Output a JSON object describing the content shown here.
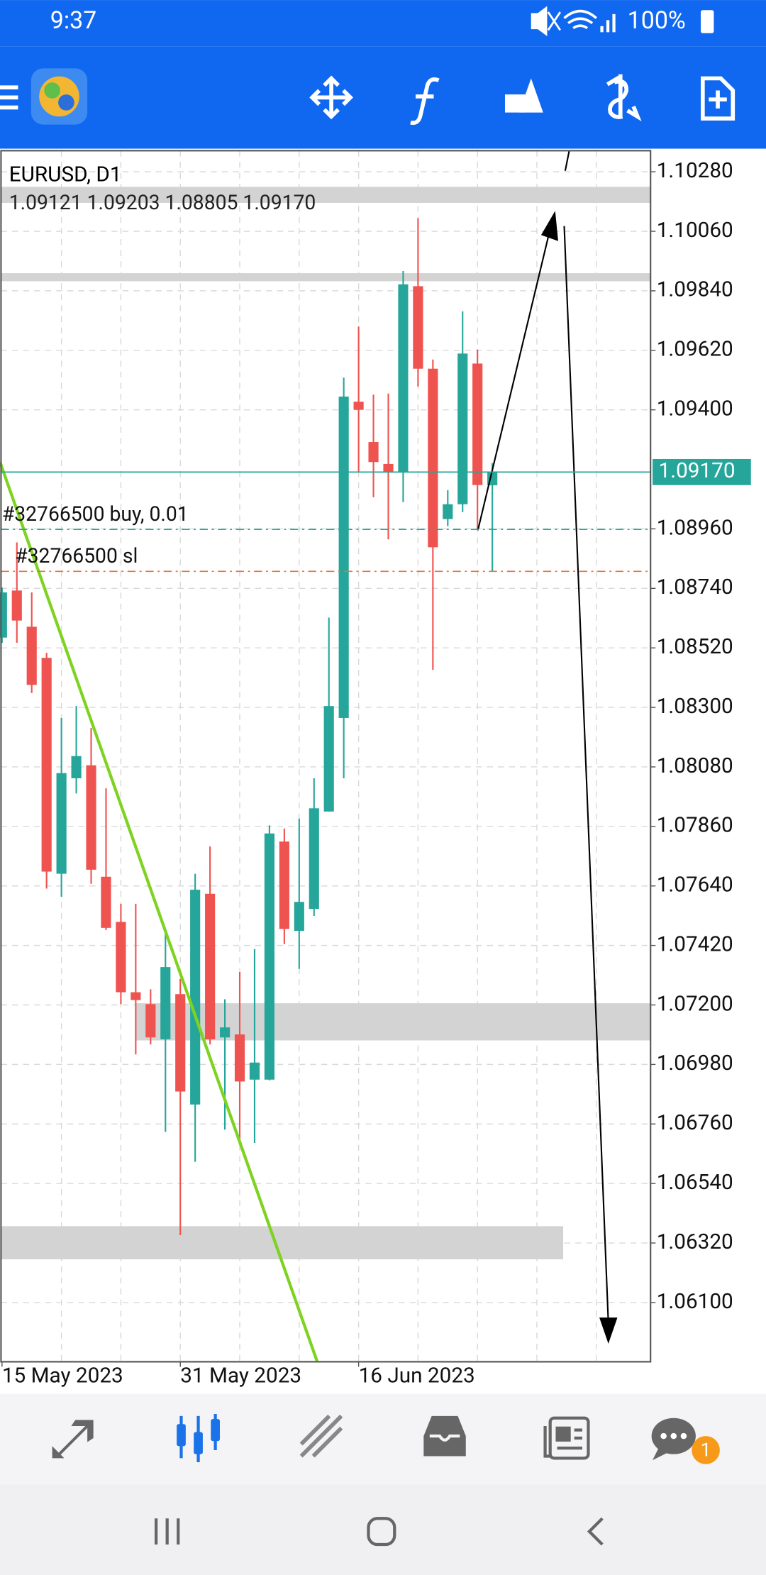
{
  "status_bar": {
    "time": "9:37",
    "battery": "100%"
  },
  "chart_data": {
    "type": "candlestick",
    "title": "EURUSD, D1",
    "subtitle": "1.09121 1.09203 1.08805 1.09170",
    "categories": [
      "15 May 2023",
      null,
      null,
      null,
      null,
      null,
      null,
      null,
      null,
      null,
      null,
      null,
      "31 May 2023",
      null,
      null,
      null,
      null,
      null,
      null,
      null,
      null,
      null,
      null,
      null,
      "16 Jun 2023",
      null,
      null,
      null,
      null,
      null,
      null,
      null,
      null,
      null
    ],
    "open": [
      1.08558,
      1.08732,
      1.08598,
      1.08483,
      1.07685,
      1.08038,
      1.08086,
      1.07674,
      1.07507,
      1.07247,
      1.07203,
      1.07073,
      1.0724,
      1.06832,
      1.07611,
      1.0708,
      1.07091,
      1.06924,
      1.06924,
      1.07804,
      1.07474,
      1.07555,
      1.07915,
      1.08261,
      1.0943,
      1.09281,
      1.092,
      1.0917,
      1.09857,
      1.09552,
      1.08996,
      1.09051,
      1.09571,
      1.09121
    ],
    "high": [
      1.08743,
      1.0891,
      1.08725,
      1.08502,
      1.08261,
      1.08305,
      1.08224,
      1.08001,
      1.07574,
      1.07574,
      1.07258,
      1.07463,
      1.07296,
      1.07685,
      1.07786,
      1.07221,
      1.07322,
      1.07407,
      1.07864,
      1.07852,
      1.07889,
      1.08038,
      1.08632,
      1.09519,
      1.09708,
      1.09456,
      1.0946,
      1.09913,
      1.10109,
      1.09586,
      1.09103,
      1.09764,
      1.09623,
      1.09203
    ],
    "low": [
      1.08539,
      1.08539,
      1.08353,
      1.0763,
      1.076,
      1.07982,
      1.07648,
      1.07477,
      1.07203,
      1.07017,
      1.07054,
      1.06731,
      1.06349,
      1.0662,
      1.07054,
      1.06739,
      1.06683,
      1.0669,
      1.06921,
      1.07425,
      1.07333,
      1.07529,
      1.07915,
      1.08038,
      1.0917,
      1.09077,
      1.08921,
      1.09059,
      1.09486,
      1.08439,
      1.0897,
      1.09022,
      1.08959,
      1.08805
    ],
    "close": [
      1.08725,
      1.08621,
      1.08383,
      1.07693,
      1.08057,
      1.0812,
      1.077,
      1.07485,
      1.07247,
      1.07218,
      1.0708,
      1.0734,
      1.0688,
      1.07626,
      1.07073,
      1.07117,
      1.06917,
      1.06987,
      1.07834,
      1.07481,
      1.07581,
      1.07927,
      1.08305,
      1.09449,
      1.094,
      1.09207,
      1.0917,
      1.09864,
      1.09552,
      1.08892,
      1.09051,
      1.09608,
      1.09122,
      1.0917
    ],
    "up_color": "#26a69a",
    "down_color": "#ef5350",
    "ylim": [
      1.05881,
      1.10358
    ],
    "yticks": [
      {
        "value": 1.1028,
        "label": "1.10280"
      },
      {
        "value": 1.1006,
        "label": "1.10060"
      },
      {
        "value": 1.0984,
        "label": "1.09840"
      },
      {
        "value": 1.0962,
        "label": "1.09620"
      },
      {
        "value": 1.094,
        "label": "1.09400"
      },
      {
        "value": 1.0896,
        "label": "1.08960"
      },
      {
        "value": 1.0874,
        "label": "1.08740"
      },
      {
        "value": 1.0852,
        "label": "1.08520"
      },
      {
        "value": 1.083,
        "label": "1.08300"
      },
      {
        "value": 1.0808,
        "label": "1.08080"
      },
      {
        "value": 1.0786,
        "label": "1.07860"
      },
      {
        "value": 1.0764,
        "label": "1.07640"
      },
      {
        "value": 1.0742,
        "label": "1.07420"
      },
      {
        "value": 1.072,
        "label": "1.07200"
      },
      {
        "value": 1.0698,
        "label": "1.06980"
      },
      {
        "value": 1.0676,
        "label": "1.06760"
      },
      {
        "value": 1.0654,
        "label": "1.06540"
      },
      {
        "value": 1.0632,
        "label": "1.06320"
      },
      {
        "value": 1.061,
        "label": "1.06100"
      }
    ],
    "grid": true,
    "last_price": {
      "value": 1.0917,
      "label": "1.09170",
      "color": "#26a69a"
    },
    "orders": [
      {
        "label": "#32766500 buy, 0.01",
        "value": 1.08958,
        "color": "#26a69a"
      },
      {
        "label": "#32766500 sl",
        "value": 1.08803,
        "color": "#e8703a"
      }
    ]
  },
  "tab_bar": {
    "badge": "1"
  }
}
